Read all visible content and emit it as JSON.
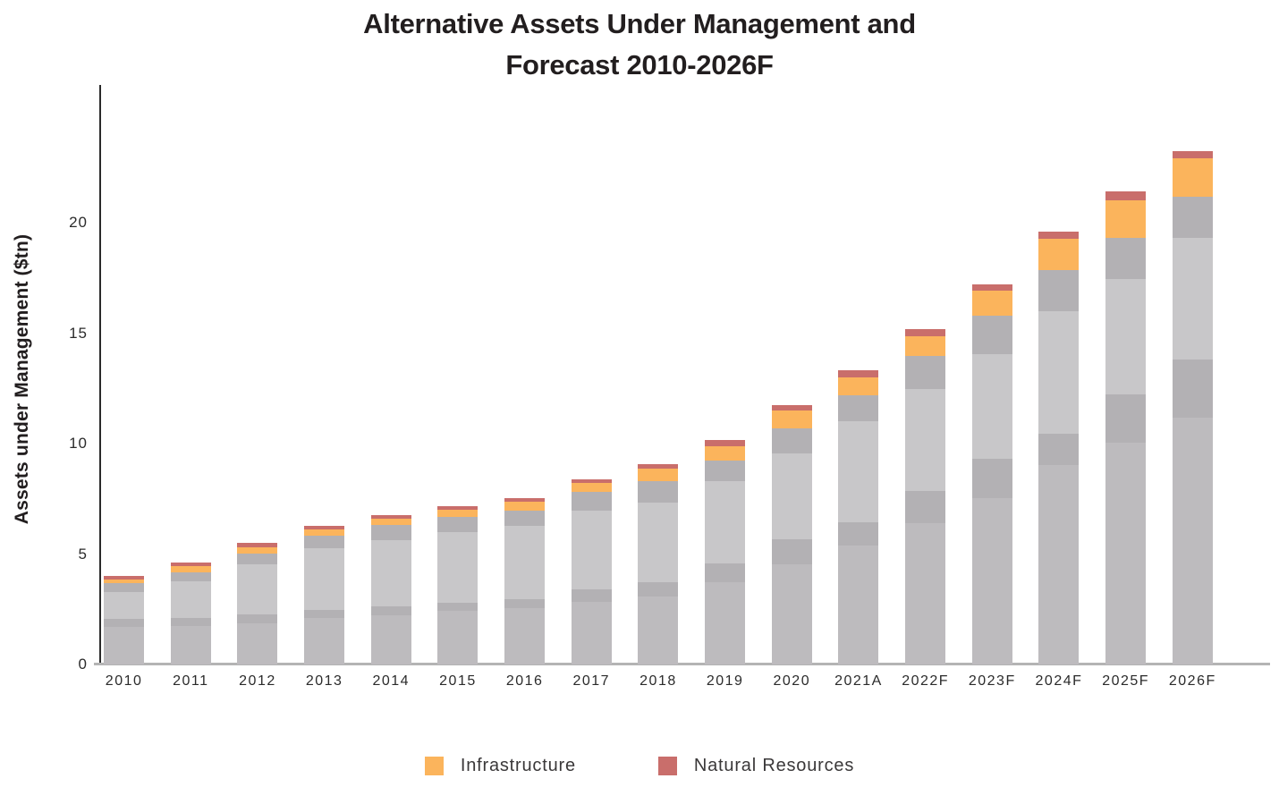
{
  "title": {
    "line1": "Alternative Assets Under Management and",
    "line2": "Forecast 2010-2026F"
  },
  "y_axis": {
    "label": "Assets under Management ($tn)"
  },
  "chart_data": {
    "type": "bar",
    "stacked": true,
    "title": "Alternative Assets Under Management and Forecast 2010-2026F",
    "xlabel": "",
    "ylabel": "Assets under Management ($tn)",
    "ylim": [
      0,
      26
    ],
    "yticks": [
      0,
      5,
      10,
      15,
      20
    ],
    "grid": false,
    "legend_position": "bottom",
    "categories": [
      "2010",
      "2011",
      "2012",
      "2013",
      "2014",
      "2015",
      "2016",
      "2017",
      "2018",
      "2019",
      "2020",
      "2021A",
      "2022F",
      "2023F",
      "2024F",
      "2025F",
      "2026F"
    ],
    "series": [
      {
        "label": null,
        "color": "#bdbbbe",
        "values": [
          1.7,
          1.74,
          1.88,
          2.12,
          2.24,
          2.42,
          2.55,
          2.82,
          3.09,
          3.74,
          4.55,
          5.38,
          6.4,
          7.54,
          9.03,
          10.04,
          11.19
        ]
      },
      {
        "label": null,
        "color": "#b3b1b4",
        "values": [
          0.35,
          0.37,
          0.4,
          0.36,
          0.4,
          0.36,
          0.41,
          0.57,
          0.65,
          0.83,
          1.1,
          1.06,
          1.44,
          1.76,
          1.41,
          2.19,
          2.63
        ]
      },
      {
        "label": null,
        "color": "#c8c7c9",
        "values": [
          1.22,
          1.66,
          2.25,
          2.77,
          2.97,
          3.21,
          3.33,
          3.57,
          3.6,
          3.72,
          3.92,
          4.59,
          4.63,
          4.75,
          5.54,
          5.23,
          5.49
        ]
      },
      {
        "label": null,
        "color": "#b3b1b4",
        "values": [
          0.4,
          0.4,
          0.49,
          0.57,
          0.71,
          0.68,
          0.67,
          0.85,
          0.95,
          0.94,
          1.14,
          1.17,
          1.51,
          1.75,
          1.89,
          1.86,
          1.86
        ]
      },
      {
        "label": "Infrastructure",
        "color": "#fbb45c",
        "values": [
          0.19,
          0.27,
          0.3,
          0.28,
          0.27,
          0.32,
          0.41,
          0.41,
          0.56,
          0.67,
          0.81,
          0.81,
          0.88,
          1.12,
          1.41,
          1.69,
          1.76
        ]
      },
      {
        "label": "Natural Resources",
        "color": "#c96e6b",
        "values": [
          0.16,
          0.16,
          0.2,
          0.19,
          0.18,
          0.19,
          0.17,
          0.17,
          0.21,
          0.28,
          0.23,
          0.3,
          0.34,
          0.27,
          0.3,
          0.39,
          0.3
        ]
      }
    ],
    "totals": [
      4.02,
      4.6,
      5.52,
      6.29,
      6.77,
      7.18,
      7.54,
      8.39,
      9.06,
      10.18,
      11.75,
      13.31,
      15.2,
      17.19,
      19.58,
      21.4,
      23.23
    ],
    "legend": [
      {
        "label": "Infrastructure",
        "color": "#fbb45c"
      },
      {
        "label": "Natural Resources",
        "color": "#c96e6b"
      }
    ]
  }
}
